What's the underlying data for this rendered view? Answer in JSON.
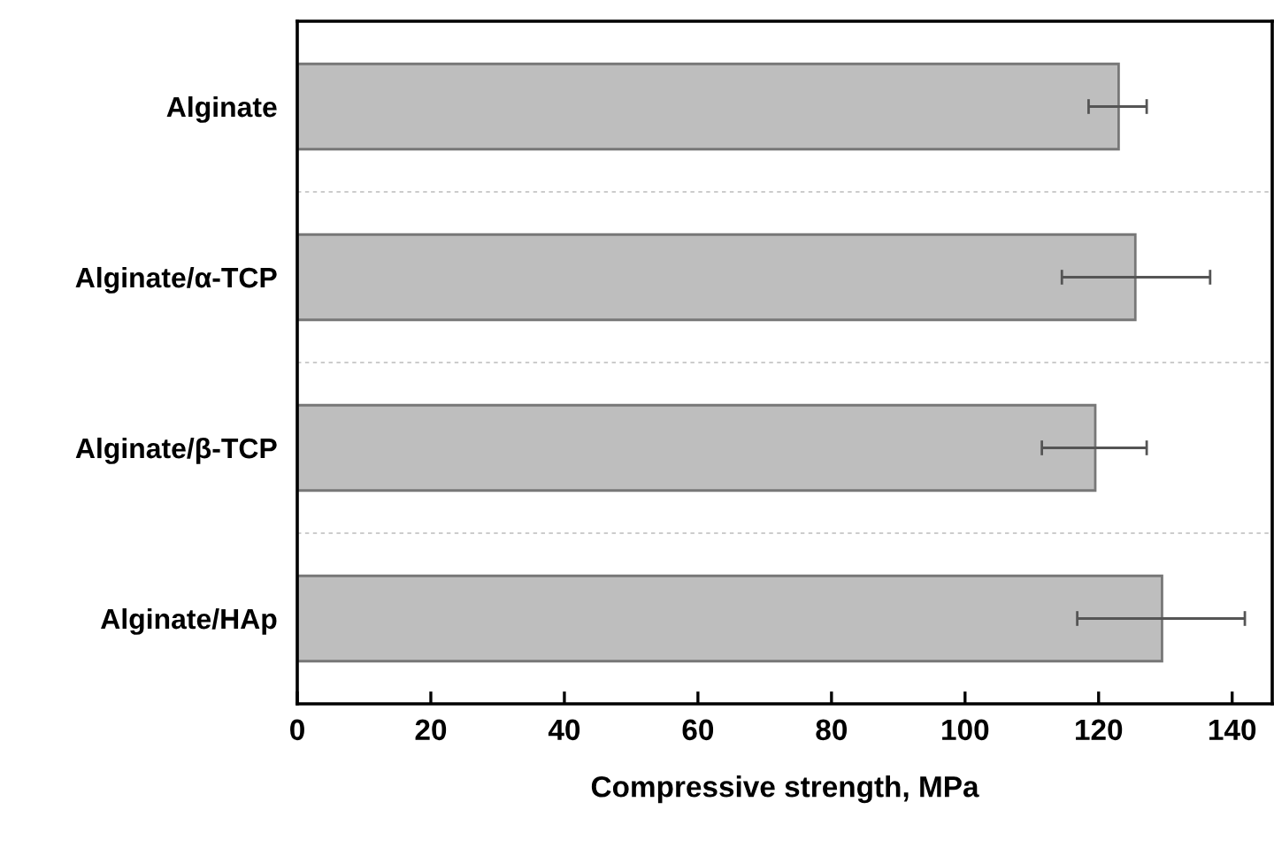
{
  "chart_data": {
    "type": "bar",
    "orientation": "horizontal",
    "categories": [
      "Alginate",
      "Alginate/α-TCP",
      "Alginate/β-TCP",
      "Alginate/HAp"
    ],
    "values": [
      123,
      125.5,
      119.5,
      129.5
    ],
    "errors": [
      [
        118.5,
        127.2
      ],
      [
        114.5,
        136.7
      ],
      [
        111.5,
        127.2
      ],
      [
        116.8,
        141.9
      ]
    ],
    "color": "#bebebe",
    "xlabel": "Compressive strength, MPa",
    "xlim": [
      0,
      146
    ],
    "xticks": [
      0,
      20,
      40,
      60,
      80,
      100,
      120,
      140
    ],
    "grid": "y"
  }
}
